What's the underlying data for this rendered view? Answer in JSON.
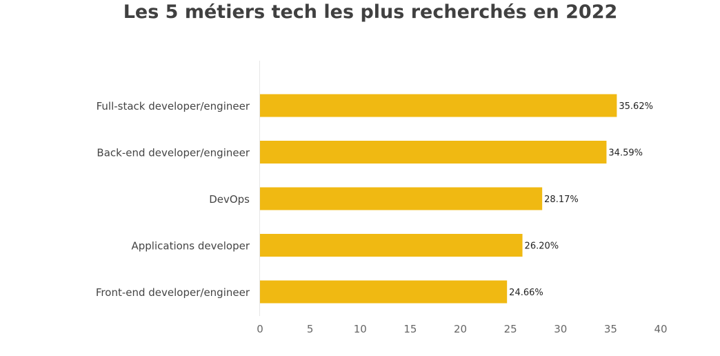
{
  "chart_data": {
    "type": "bar",
    "orientation": "horizontal",
    "title": "Les 5 métiers tech les plus recherchés en 2022",
    "categories": [
      "Full-stack developer/engineer",
      "Back-end developer/engineer",
      "DevOps",
      "Applications developer",
      "Front-end developer/engineer"
    ],
    "values": [
      35.62,
      34.59,
      28.17,
      26.2,
      24.66
    ],
    "data_labels": [
      "35.62%",
      "34.59%",
      "28.17%",
      "26.20%",
      "24.66%"
    ],
    "xlim": [
      0,
      40
    ],
    "xticks": [
      0,
      5,
      10,
      15,
      20,
      25,
      30,
      35,
      40
    ],
    "xlabel": "",
    "ylabel": "",
    "grid": false,
    "legend": "none",
    "bar_color": "#F0B912"
  }
}
